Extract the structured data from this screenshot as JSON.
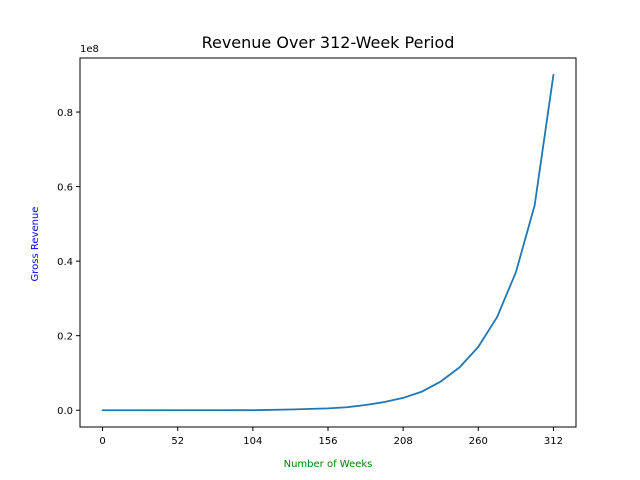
{
  "chart_data": {
    "type": "line",
    "title": "Revenue Over 312-Week Period",
    "xlabel": "Number of Weeks",
    "ylabel": "Gross Revenue",
    "xlabel_color": "#008000",
    "ylabel_color": "#0000ff",
    "offset_label": "1e8",
    "xlim": [
      -15.6,
      327.6
    ],
    "ylim": [
      -4500000,
      94500000
    ],
    "xticks": [
      0,
      52,
      104,
      156,
      208,
      260,
      312
    ],
    "yticks": [
      0,
      20000000,
      40000000,
      60000000,
      80000000
    ],
    "ytick_labels": [
      "0.0",
      "0.2",
      "0.4",
      "0.6",
      "0.8"
    ],
    "grid": false,
    "series": [
      {
        "color": "#1f77b4",
        "x": [
          0,
          104,
          130,
          156,
          169,
          182,
          195,
          208,
          221,
          234,
          247,
          260,
          273,
          286,
          299,
          312
        ],
        "y": [
          0,
          10000,
          200000,
          500000,
          800000,
          1400000,
          2200000,
          3300000,
          5000000,
          7700000,
          11500000,
          17000000,
          25000000,
          37000000,
          55000000,
          90000000
        ]
      }
    ]
  }
}
